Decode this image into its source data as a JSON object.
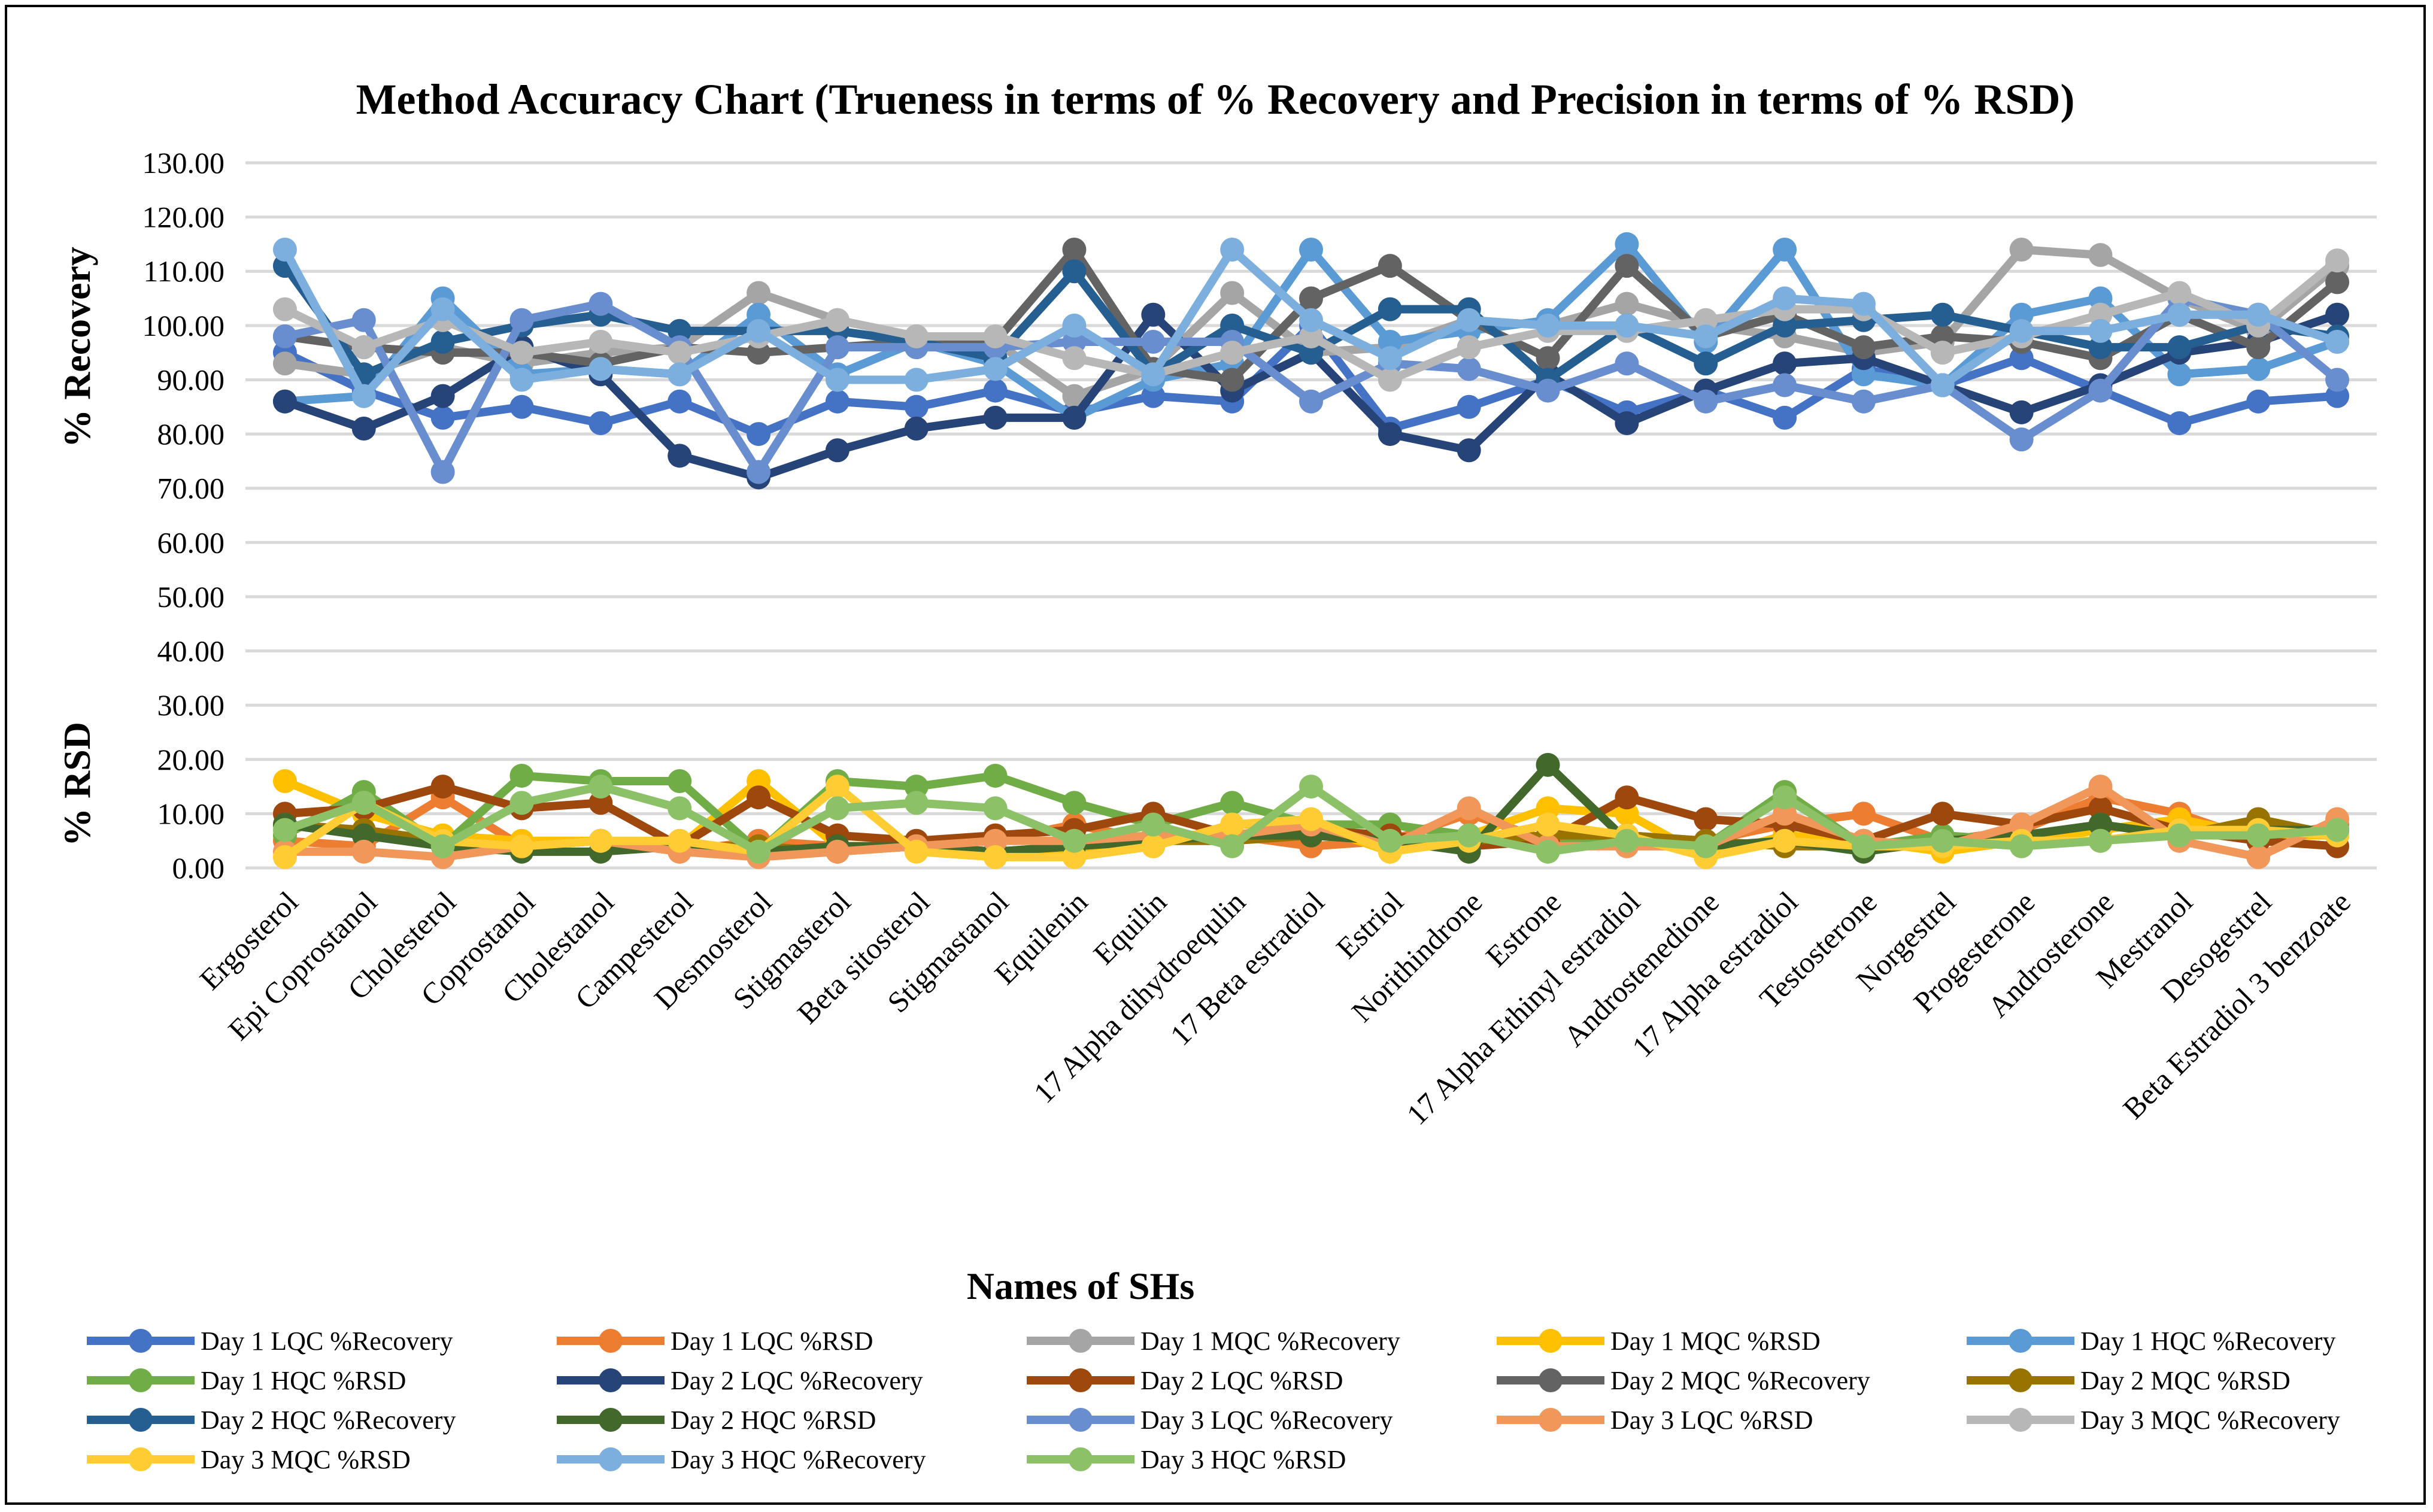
{
  "chart_data": {
    "type": "line",
    "title": "Method Accuracy Chart (Trueness in terms of % Recovery and Precision in terms of % RSD)",
    "xlabel": "Names of SHs",
    "ylabel_upper": "% Recovery",
    "ylabel_lower": "% RSD",
    "ylim": [
      0,
      130
    ],
    "yticks": [
      "0.00",
      "10.00",
      "20.00",
      "30.00",
      "40.00",
      "50.00",
      "60.00",
      "70.00",
      "80.00",
      "90.00",
      "100.00",
      "110.00",
      "120.00",
      "130.00"
    ],
    "grid": true,
    "legend_position": "bottom",
    "categories": [
      "Ergosterol",
      "Epi Coprostanol",
      "Cholesterol",
      "Coprostanol",
      "Cholestanol",
      "Campesterol",
      "Desmosterol",
      "Stigmasterol",
      "Beta sitosterol",
      "Stigmastanol",
      "Equilenin",
      "Equilin",
      "17 Alpha dihydroequlin",
      "17 Beta estradiol",
      "Estriol",
      "Norithindrone",
      "Estrone",
      "17 Alpha Ethinyl estradiol",
      "Androstenedione",
      "17 Alpha estradiol",
      "Testosterone",
      "Norgestrel",
      "Progesterone",
      "Androsterone",
      "Mestranol",
      "Desogestrel",
      "Beta Estradiol 3 benzoate"
    ],
    "series": [
      {
        "name": "Day 1 LQC %Recovery",
        "color": "#4472C4",
        "values": [
          95,
          88,
          83,
          85,
          82,
          86,
          80,
          86,
          85,
          88,
          84,
          87,
          86,
          100,
          81,
          85,
          90,
          84,
          88,
          83,
          92,
          89,
          94,
          88,
          82,
          86,
          87
        ]
      },
      {
        "name": "Day 1 LQC %RSD",
        "color": "#ED7D31",
        "values": [
          5,
          4,
          13,
          4,
          5,
          3,
          5,
          4,
          4,
          5,
          8,
          5,
          6,
          4,
          5,
          10,
          5,
          6,
          5,
          8,
          10,
          5,
          7,
          13,
          10,
          5,
          8
        ]
      },
      {
        "name": "Day 1 MQC %Recovery",
        "color": "#A5A5A5",
        "values": [
          93,
          91,
          96,
          93,
          95,
          96,
          106,
          101,
          98,
          97,
          87,
          92,
          106,
          95,
          96,
          101,
          100,
          104,
          100,
          98,
          95,
          97,
          114,
          113,
          105,
          99,
          111
        ]
      },
      {
        "name": "Day 1 MQC %RSD",
        "color": "#FFC000",
        "values": [
          16,
          10,
          6,
          5,
          5,
          4,
          16,
          4,
          4,
          3,
          3,
          4,
          8,
          8,
          3,
          6,
          11,
          10,
          2,
          6,
          5,
          3,
          5,
          7,
          9,
          6,
          6
        ]
      },
      {
        "name": "Day 1 HQC %Recovery",
        "color": "#5B9BD5",
        "values": [
          86,
          87,
          105,
          91,
          92,
          91,
          102,
          91,
          97,
          93,
          83,
          90,
          93,
          114,
          97,
          99,
          101,
          115,
          97,
          114,
          91,
          89,
          102,
          105,
          91,
          92,
          97
        ]
      },
      {
        "name": "Day 1 HQC %RSD",
        "color": "#70AD47",
        "values": [
          6,
          14,
          4,
          17,
          16,
          16,
          3,
          16,
          15,
          17,
          12,
          8,
          12,
          8,
          8,
          6,
          4,
          6,
          4,
          14,
          4,
          6,
          5,
          5,
          7,
          6,
          7
        ]
      },
      {
        "name": "Day 2 LQC %Recovery",
        "color": "#264478",
        "values": [
          86,
          81,
          87,
          96,
          91,
          76,
          72,
          77,
          81,
          83,
          83,
          102,
          88,
          95,
          80,
          77,
          91,
          82,
          88,
          93,
          94,
          89,
          84,
          89,
          95,
          97,
          102
        ]
      },
      {
        "name": "Day 2 LQC %RSD",
        "color": "#9E480E",
        "values": [
          10,
          11,
          15,
          11,
          12,
          4,
          13,
          6,
          5,
          6,
          7,
          10,
          6,
          7,
          6,
          4,
          5,
          13,
          9,
          8,
          5,
          10,
          8,
          11,
          7,
          5,
          4
        ]
      },
      {
        "name": "Day 2 MQC %Recovery",
        "color": "#636363",
        "values": [
          98,
          96,
          95,
          95,
          93,
          96,
          95,
          96,
          97,
          97,
          114,
          92,
          90,
          105,
          111,
          101,
          94,
          111,
          98,
          102,
          96,
          98,
          97,
          94,
          102,
          96,
          108
        ]
      },
      {
        "name": "Day 2 MQC %RSD",
        "color": "#997300",
        "values": [
          8,
          7,
          5,
          4,
          5,
          4,
          4,
          3,
          4,
          3,
          4,
          5,
          5,
          6,
          5,
          5,
          6,
          6,
          5,
          4,
          4,
          5,
          6,
          8,
          6,
          9,
          6
        ]
      },
      {
        "name": "Day 2 HQC %Recovery",
        "color": "#255E91",
        "values": [
          111,
          91,
          97,
          100,
          102,
          99,
          99,
          99,
          97,
          94,
          110,
          91,
          100,
          95,
          103,
          103,
          90,
          100,
          93,
          100,
          101,
          102,
          99,
          96,
          96,
          100,
          98
        ]
      },
      {
        "name": "Day 2 HQC %RSD",
        "color": "#43682B",
        "values": [
          8,
          6,
          4,
          3,
          3,
          4,
          3,
          4,
          4,
          3,
          4,
          5,
          6,
          6,
          5,
          3,
          19,
          5,
          4,
          5,
          3,
          5,
          6,
          8,
          6,
          7,
          7
        ]
      },
      {
        "name": "Day 3 LQC %Recovery",
        "color": "#698ED0",
        "values": [
          98,
          101,
          73,
          101,
          104,
          96,
          73,
          96,
          96,
          96,
          97,
          97,
          97,
          86,
          93,
          92,
          88,
          93,
          86,
          89,
          86,
          89,
          79,
          88,
          105,
          102,
          90
        ]
      },
      {
        "name": "Day 3 LQC %RSD",
        "color": "#F1975A",
        "values": [
          3,
          3,
          2,
          4,
          5,
          3,
          2,
          3,
          4,
          5,
          5,
          6,
          6,
          8,
          4,
          11,
          4,
          4,
          4,
          10,
          5,
          4,
          8,
          15,
          5,
          2,
          9
        ]
      },
      {
        "name": "Day 3 MQC %Recovery",
        "color": "#B7B7B7",
        "values": [
          103,
          96,
          101,
          95,
          97,
          95,
          98,
          101,
          98,
          98,
          94,
          91,
          95,
          98,
          90,
          96,
          99,
          99,
          101,
          103,
          103,
          95,
          98,
          102,
          106,
          100,
          112
        ]
      },
      {
        "name": "Day 3 MQC %RSD",
        "color": "#FFCD33",
        "values": [
          2,
          12,
          5,
          4,
          5,
          5,
          3,
          15,
          3,
          2,
          2,
          4,
          8,
          9,
          3,
          5,
          8,
          6,
          2,
          5,
          4,
          4,
          5,
          5,
          7,
          7,
          6
        ]
      },
      {
        "name": "Day 3 HQC %Recovery",
        "color": "#7CAFDD",
        "values": [
          114,
          87,
          103,
          90,
          92,
          91,
          99,
          90,
          90,
          92,
          100,
          91,
          114,
          101,
          94,
          101,
          100,
          100,
          98,
          105,
          104,
          89,
          99,
          99,
          102,
          102,
          97
        ]
      },
      {
        "name": "Day 3 HQC %RSD",
        "color": "#8CC168",
        "values": [
          7,
          12,
          4,
          12,
          15,
          11,
          3,
          11,
          12,
          11,
          5,
          8,
          4,
          15,
          5,
          6,
          3,
          5,
          4,
          13,
          4,
          5,
          4,
          5,
          6,
          6,
          7
        ]
      }
    ]
  }
}
